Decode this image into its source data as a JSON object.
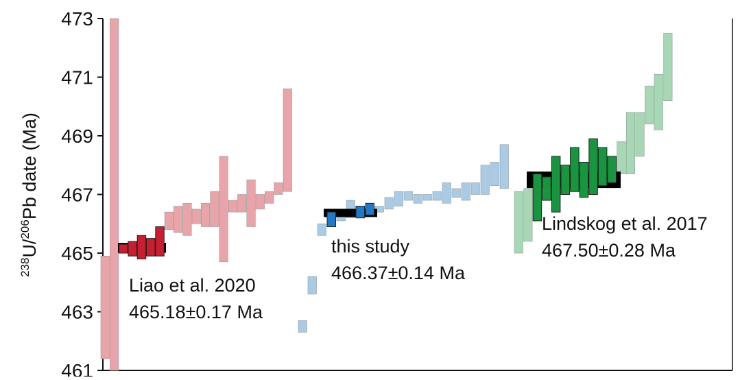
{
  "chart_data": {
    "type": "range-bar",
    "ylabel_parts": [
      "238",
      "U/",
      "206",
      "Pb date (Ma)"
    ],
    "ylim": [
      461,
      473
    ],
    "yticks": [
      461,
      463,
      465,
      467,
      469,
      471,
      473
    ],
    "groups": [
      {
        "label": "Liao et al. 2020",
        "value_label": "465.18±0.17 Ma",
        "mean": 465.18,
        "mean_err": 0.17,
        "color_light": "#e9a4a9",
        "color_dark": "#c81e2f",
        "low": [
          461.4,
          461.0,
          465.0,
          464.9,
          464.8,
          464.9,
          464.9,
          465.8,
          465.7,
          465.6,
          466.0,
          465.9,
          465.9,
          464.7,
          466.4,
          466.4,
          465.9,
          466.5,
          466.7,
          467.0,
          467.1
        ],
        "high": [
          464.9,
          473.0,
          465.3,
          465.4,
          465.6,
          465.5,
          465.9,
          466.4,
          466.6,
          466.7,
          466.5,
          466.7,
          467.1,
          468.3,
          466.8,
          467.0,
          467.5,
          467.0,
          467.1,
          467.4,
          470.6
        ],
        "highlight": [
          false,
          false,
          true,
          true,
          true,
          true,
          true,
          false,
          false,
          false,
          false,
          false,
          false,
          false,
          false,
          false,
          false,
          false,
          false,
          false,
          false
        ]
      },
      {
        "label": "this study",
        "value_label": "466.37±0.14 Ma",
        "mean": 466.37,
        "mean_err": 0.14,
        "color_light": "#a9cbe6",
        "color_dark": "#1f78c8",
        "low": [
          462.3,
          463.6,
          465.6,
          465.9,
          466.1,
          466.2,
          466.2,
          466.3,
          466.4,
          466.5,
          466.6,
          466.8,
          466.7,
          466.8,
          466.8,
          466.7,
          466.9,
          466.8,
          467.0,
          467.0,
          467.3,
          467.2
        ],
        "high": [
          462.7,
          464.2,
          466.0,
          466.4,
          466.5,
          466.8,
          466.6,
          466.7,
          466.6,
          466.9,
          467.1,
          467.1,
          467.0,
          467.0,
          467.1,
          467.4,
          467.2,
          467.4,
          467.4,
          468.0,
          468.1,
          468.7
        ],
        "highlight": [
          false,
          false,
          false,
          true,
          false,
          false,
          true,
          true,
          false,
          false,
          false,
          false,
          false,
          false,
          false,
          false,
          false,
          false,
          false,
          false,
          false,
          false
        ]
      },
      {
        "label": "Lindskog et al. 2017",
        "value_label": "467.50±0.28 Ma",
        "mean": 467.5,
        "mean_err": 0.28,
        "color_light": "#a6d8b5",
        "color_dark": "#17963f",
        "low": [
          465.0,
          465.4,
          466.1,
          466.8,
          466.4,
          467.0,
          467.1,
          466.9,
          467.0,
          467.3,
          467.4,
          467.7,
          467.7,
          468.3,
          469.4,
          469.2,
          470.2
        ],
        "high": [
          467.1,
          467.2,
          467.7,
          467.6,
          468.3,
          468.0,
          468.6,
          468.1,
          468.9,
          468.6,
          468.3,
          468.8,
          469.8,
          469.8,
          470.7,
          471.1,
          472.5
        ],
        "highlight": [
          false,
          false,
          true,
          true,
          true,
          true,
          true,
          true,
          true,
          true,
          true,
          false,
          false,
          false,
          false,
          false,
          false
        ]
      }
    ]
  }
}
